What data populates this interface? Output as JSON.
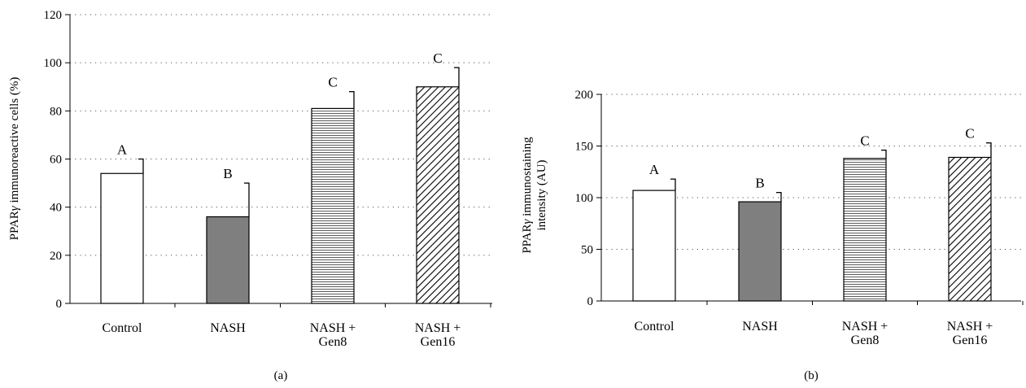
{
  "chart_data": [
    {
      "type": "bar",
      "panel_label": "(a)",
      "ylabel_parts": [
        "PPAR",
        "γ",
        " immunoreactive cells (%)"
      ],
      "ylim": [
        0,
        120
      ],
      "yticks": [
        0,
        20,
        40,
        60,
        80,
        100,
        120
      ],
      "grid": "dotted horizontal",
      "categories": [
        [
          "Control"
        ],
        [
          "NASH"
        ],
        [
          "NASH +",
          "Gen8"
        ],
        [
          "NASH +",
          "Gen16"
        ]
      ],
      "values": [
        54,
        36,
        81,
        90
      ],
      "errors": [
        6,
        14,
        7,
        8
      ],
      "significance": [
        "A",
        "B",
        "C",
        "C"
      ],
      "fills": [
        "white",
        "#7f7f7f",
        "hlines",
        "diag"
      ]
    },
    {
      "type": "bar",
      "panel_label": "(b)",
      "ylabel_parts": [
        "PPAR",
        "γ",
        " immunostaining",
        "intensity (AU)"
      ],
      "ylim": [
        0,
        200
      ],
      "yticks": [
        0,
        50,
        100,
        150,
        200
      ],
      "grid": "dotted horizontal",
      "categories": [
        [
          "Control"
        ],
        [
          "NASH"
        ],
        [
          "NASH +",
          "Gen8"
        ],
        [
          "NASH +",
          "Gen16"
        ]
      ],
      "values": [
        107,
        96,
        138,
        139
      ],
      "errors": [
        11,
        9,
        8,
        14
      ],
      "significance": [
        "A",
        "B",
        "C",
        "C"
      ],
      "fills": [
        "white",
        "#7f7f7f",
        "hlines",
        "diag"
      ]
    }
  ]
}
